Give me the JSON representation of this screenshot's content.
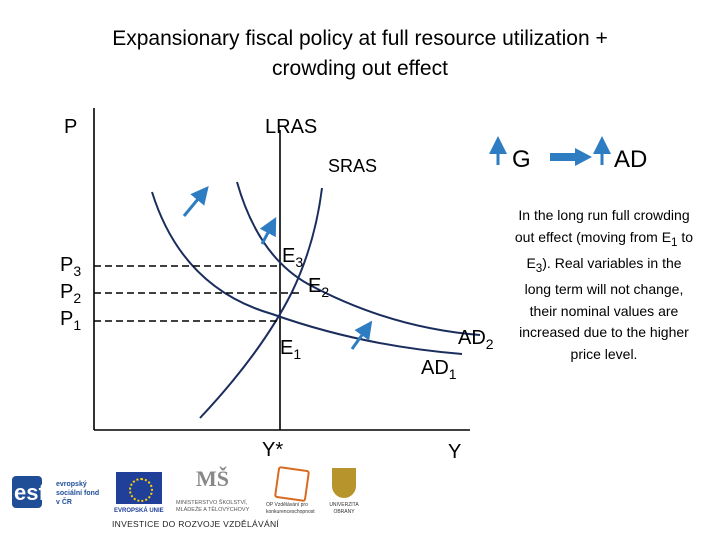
{
  "title_line1": "Expansionary fiscal policy at full resource utilization +",
  "title_line2": "crowding out effect",
  "axes": {
    "y_label": "P",
    "x_label": "Y",
    "x_star": "Y*"
  },
  "curves": {
    "lras": "LRAS",
    "sras": "SRAS",
    "ad1_main": "AD",
    "ad1_sub": "1",
    "ad2_main": "AD",
    "ad2_sub": "2"
  },
  "points": {
    "e1_main": "E",
    "e1_sub": "1",
    "e2_main": "E",
    "e2_sub": "2",
    "e3_main": "E",
    "e3_sub": "3"
  },
  "prices": {
    "p3_main": "P",
    "p3_sub": "3",
    "p2_main": "P",
    "p2_sub": "2",
    "p1_main": "P",
    "p1_sub": "1"
  },
  "legend": {
    "g": "G",
    "ad": "AD"
  },
  "note": {
    "part1": "In the long run full crowding out effect (moving from E",
    "sub1": "1",
    "part2": " to E",
    "sub2": "3",
    "part3": "). Real variables in the long term will not change, their nominal values are increased due to the higher price level."
  },
  "logos": {
    "esf_word": "esf",
    "esf_caption": "evropský sociální fond v ČR",
    "eu_caption": "EVROPSKÁ UNIE",
    "msmt_caption": "MINISTERSTVO ŠKOLSTVÍ, MLÁDEŽE A TĚLOVÝCHOVY",
    "op_caption": "OP Vzdělávání pro konkurenceschopnost",
    "uni_caption": "UNIVERZITA OBRANY",
    "footer": "INVESTICE DO ROZVOJE VZDĚLÁVÁNÍ"
  },
  "colors": {
    "curve": "#1a2d5c",
    "arrow": "#2e7cc2",
    "axis": "#000000"
  }
}
